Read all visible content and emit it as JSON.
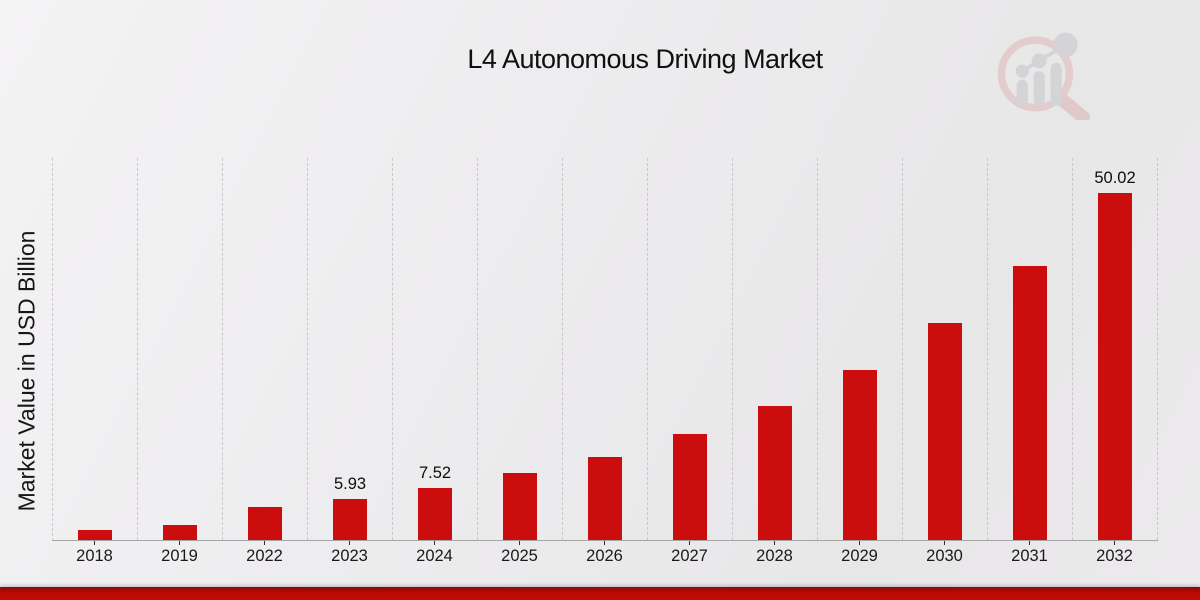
{
  "header": {
    "title": "L4 Autonomous Driving Market",
    "logo": "magnifier-growth-chart-watermark"
  },
  "chart_data": {
    "type": "bar",
    "title": "L4 Autonomous Driving Market",
    "xlabel": "",
    "ylabel": "Market Value in USD Billion",
    "ylim": [
      0,
      55
    ],
    "grid": "vertical dashed gridlines between categories, no horizontal gridlines",
    "legend": "none",
    "bar_color": "#cb0d0d",
    "categories": [
      "2018",
      "2019",
      "2022",
      "2023",
      "2024",
      "2025",
      "2026",
      "2027",
      "2028",
      "2029",
      "2030",
      "2031",
      "2032"
    ],
    "values": [
      1.5,
      2.2,
      4.7,
      5.93,
      7.52,
      9.7,
      12.0,
      15.2,
      19.3,
      24.5,
      31.3,
      39.5,
      50.02
    ],
    "value_labels": {
      "2023": "5.93",
      "2024": "7.52",
      "2032": "50.02"
    }
  },
  "footer": {
    "brand_band_top_color": "#8d0a05",
    "brand_band_color": "#c20b04"
  },
  "colors": {
    "background": "#ecebec",
    "gridline": "#c9c8c9",
    "axis_line": "#a6a5a6",
    "text": "#161616"
  }
}
